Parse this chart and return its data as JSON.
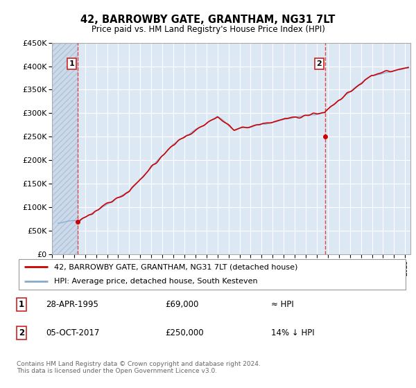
{
  "title": "42, BARROWBY GATE, GRANTHAM, NG31 7LT",
  "subtitle": "Price paid vs. HM Land Registry's House Price Index (HPI)",
  "point1_date": "28-APR-1995",
  "point1_price": 69000,
  "point1_year": 1995.33,
  "point1_label": "≈ HPI",
  "point2_date": "05-OCT-2017",
  "point2_price": 250000,
  "point2_year": 2017.77,
  "point2_label": "14% ↓ HPI",
  "ylim": [
    0,
    450000
  ],
  "xmin": 1993,
  "xmax": 2025.5,
  "legend_line1": "42, BARROWBY GATE, GRANTHAM, NG31 7LT (detached house)",
  "legend_line2": "HPI: Average price, detached house, South Kesteven",
  "footer": "Contains HM Land Registry data © Crown copyright and database right 2024.\nThis data is licensed under the Open Government Licence v3.0.",
  "bg_color": "#dde8f5",
  "hatch_bg_color": "#ccd9ea",
  "grid_color": "#ffffff",
  "red_line_color": "#cc0000",
  "blue_line_color": "#88aacc",
  "point_color": "#cc0000",
  "vline_color": "#dd3333",
  "box_edge_color": "#cc2222"
}
